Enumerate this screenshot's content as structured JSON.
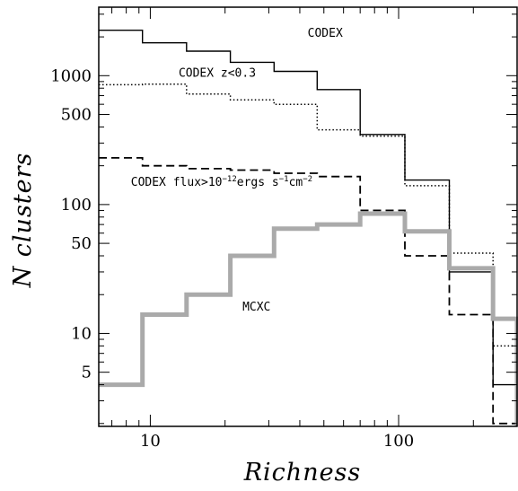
{
  "chart_data": {
    "type": "histogram",
    "xlabel": "Richness",
    "ylabel": "N clusters",
    "xscale": "log",
    "yscale": "log",
    "xlim": [
      6.2,
      300
    ],
    "ylim": [
      1.9,
      3400
    ],
    "x_ticks": [
      {
        "value": 10,
        "label": "10"
      },
      {
        "value": 100,
        "label": "100"
      }
    ],
    "y_ticks": [
      {
        "value": 5,
        "label": "5"
      },
      {
        "value": 10,
        "label": "10"
      },
      {
        "value": 50,
        "label": "50"
      },
      {
        "value": 100,
        "label": "100"
      },
      {
        "value": 500,
        "label": "500"
      },
      {
        "value": 1000,
        "label": "1000"
      }
    ],
    "bin_edges": [
      6.2,
      9.3,
      14,
      21,
      31.5,
      47,
      70,
      106,
      160,
      240,
      300
    ],
    "series": [
      {
        "key": "codex",
        "values": [
          2250,
          1800,
          1550,
          1270,
          1080,
          780,
          350,
          155,
          30,
          4,
          4
        ]
      },
      {
        "key": "codex_z",
        "values": [
          850,
          860,
          720,
          650,
          600,
          380,
          340,
          140,
          42,
          8,
          8
        ]
      },
      {
        "key": "codex_flux",
        "values": [
          230,
          200,
          190,
          185,
          175,
          165,
          90,
          40,
          14,
          2,
          2
        ]
      },
      {
        "key": "mcxc",
        "values": [
          4,
          14,
          20,
          40,
          65,
          70,
          85,
          62,
          32,
          13,
          1.9
        ]
      }
    ],
    "annotations": [
      {
        "key": "codex",
        "text": "CODEX",
        "x": 43,
        "y": 2000
      },
      {
        "key": "codex_z",
        "text_main": "CODEX z<0.3",
        "x": 13,
        "y": 980
      },
      {
        "key": "codex_flux",
        "parts": [
          "CODEX flux>10",
          "−12",
          "ergs s",
          "−1",
          "cm",
          "−2"
        ],
        "x": 8.35,
        "y": 140
      },
      {
        "key": "mcxc",
        "text": "MCXC",
        "x": 23.5,
        "y": 15
      }
    ]
  }
}
